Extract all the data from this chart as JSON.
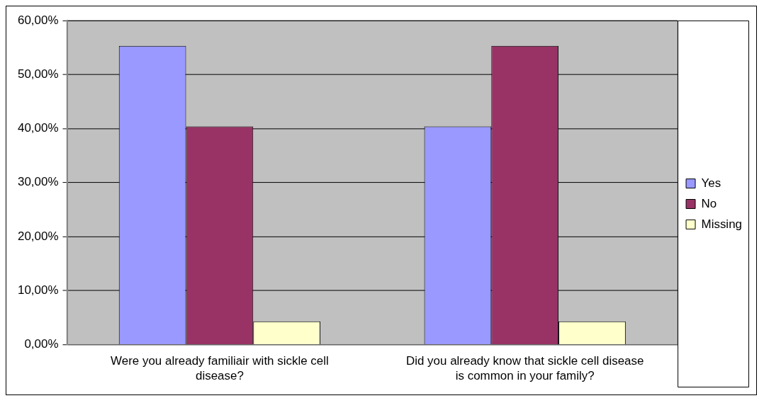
{
  "chart_data": {
    "type": "bar",
    "categories": [
      "Were you already familiair with sickle cell disease?",
      "Did you already know that sickle cell disease is common in your family?"
    ],
    "series": [
      {
        "name": "Yes",
        "color": "#9999ff",
        "values": [
          55.3,
          40.4
        ]
      },
      {
        "name": "No",
        "color": "#993366",
        "values": [
          40.4,
          55.3
        ]
      },
      {
        "name": "Missing",
        "color": "#ffffcc",
        "values": [
          4.3,
          4.3
        ]
      }
    ],
    "ylim": [
      0,
      60
    ],
    "yticks": [
      {
        "value": 0,
        "label": "0,00%"
      },
      {
        "value": 10,
        "label": "10,00%"
      },
      {
        "value": 20,
        "label": "20,00%"
      },
      {
        "value": 30,
        "label": "30,00%"
      },
      {
        "value": 40,
        "label": "40,00%"
      },
      {
        "value": 50,
        "label": "50,00%"
      },
      {
        "value": 60,
        "label": "60,00%"
      }
    ],
    "grid": "y",
    "legend": "right"
  }
}
